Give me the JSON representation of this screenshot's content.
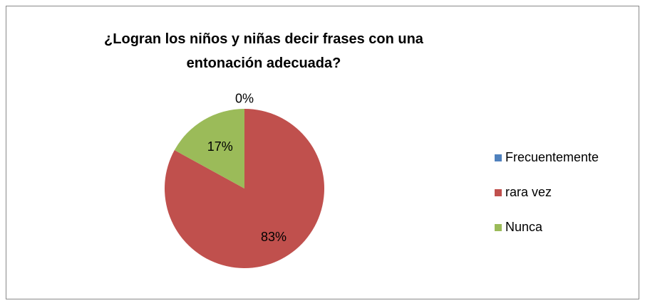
{
  "chart_data": {
    "type": "pie",
    "title": "¿Logran los niños y niñas decir frases con una entonación adecuada?",
    "categories": [
      "Frecuentemente",
      "rara vez",
      "Nunca"
    ],
    "values": [
      0,
      83,
      17
    ],
    "value_labels": [
      "0%",
      "83%",
      "17%"
    ],
    "colors": [
      "#4f81bd",
      "#c0504d",
      "#9bbb59"
    ],
    "legend": "right"
  }
}
